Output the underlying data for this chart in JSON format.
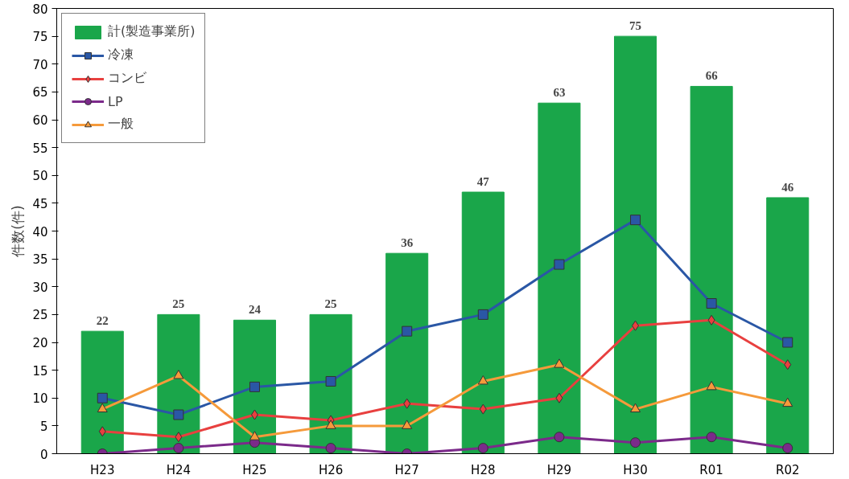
{
  "chart_data": {
    "type": "bar",
    "ylabel": "件数(件)",
    "categories": [
      "H23",
      "H24",
      "H25",
      "H26",
      "H27",
      "H28",
      "H29",
      "H30",
      "R01",
      "R02"
    ],
    "series": [
      {
        "name": "計(製造事業所)",
        "color": "#1aa64a",
        "values": [
          22,
          25,
          24,
          25,
          36,
          47,
          63,
          75,
          66,
          46
        ],
        "data_labels": true
      },
      {
        "name": "冷凍",
        "type": "line",
        "color": "#2a57a5",
        "marker": "square",
        "values": [
          10,
          7,
          12,
          13,
          22,
          25,
          34,
          42,
          27,
          20
        ]
      },
      {
        "name": "コンビ",
        "type": "line",
        "color": "#e8403f",
        "marker": "diamond",
        "values": [
          4,
          3,
          7,
          6,
          9,
          8,
          10,
          23,
          24,
          16
        ]
      },
      {
        "name": "LP",
        "type": "line",
        "color": "#7b2a8a",
        "marker": "circle",
        "values": [
          0,
          1,
          2,
          1,
          0,
          1,
          3,
          2,
          3,
          1
        ]
      },
      {
        "name": "一般",
        "type": "line",
        "color": "#f59a3b",
        "marker": "triangle",
        "values": [
          8,
          14,
          3,
          5,
          5,
          13,
          16,
          8,
          12,
          9
        ]
      }
    ],
    "ylim": [
      0,
      80
    ],
    "yticks": [
      0,
      5,
      10,
      15,
      20,
      25,
      30,
      35,
      40,
      45,
      50,
      55,
      60,
      65,
      70,
      75,
      80
    ],
    "grid": false,
    "legend": "top left",
    "line_style": "solid"
  }
}
